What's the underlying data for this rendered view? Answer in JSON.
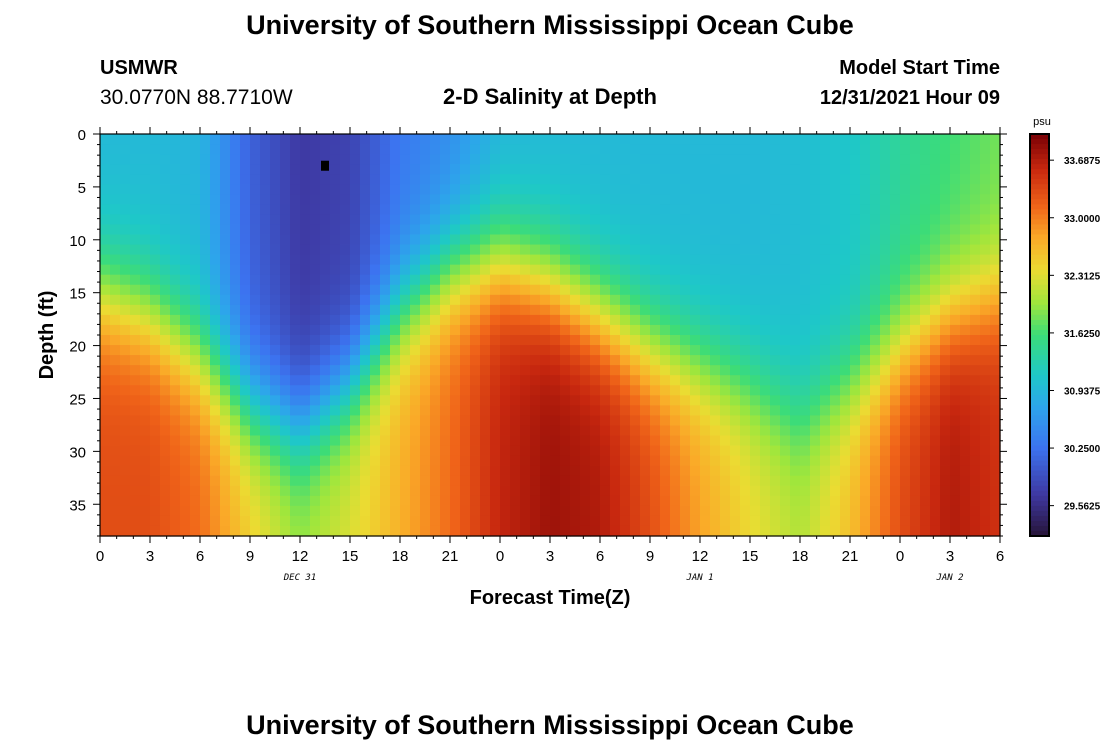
{
  "header": {
    "title": "University of Southern Mississippi Ocean Cube",
    "station_id": "USMWR",
    "station_coords": "30.0770N  88.7710W",
    "subtitle": "2-D Salinity at Depth",
    "model_start_label": "Model Start Time",
    "model_start_value": "12/31/2021 Hour 09"
  },
  "footer": {
    "title": "University of Southern Mississippi Ocean Cube"
  },
  "chart_data": {
    "type": "heatmap",
    "title": "2-D Salinity at Depth",
    "xlabel": "Forecast Time(Z)",
    "ylabel": "Depth (ft)",
    "x_tick_labels": [
      "0",
      "3",
      "6",
      "9",
      "12",
      "15",
      "18",
      "21",
      "0",
      "3",
      "6",
      "9",
      "12",
      "15",
      "18",
      "21",
      "0",
      "3",
      "6"
    ],
    "x_hours_range": [
      0,
      54
    ],
    "date_labels": [
      {
        "label": "DEC 31",
        "hour": 12
      },
      {
        "label": "JAN 1",
        "hour": 36
      },
      {
        "label": "JAN 2",
        "hour": 51
      }
    ],
    "y_ticks": [
      0,
      5,
      10,
      15,
      20,
      25,
      30,
      35
    ],
    "ylim": [
      0,
      38
    ],
    "y_inverted": true,
    "colorbar": {
      "unit": "psu",
      "range": [
        29.2,
        34.0
      ],
      "tick_labels": [
        "33.6875",
        "33.0000",
        "32.3125",
        "31.6250",
        "30.9375",
        "30.2500",
        "29.5625"
      ],
      "tick_values": [
        33.6875,
        33.0,
        32.3125,
        31.625,
        30.9375,
        30.25,
        29.5625
      ]
    },
    "marker": {
      "hour": 13.5,
      "depth_ft": 3
    },
    "profiles": {
      "hours": [
        0,
        3,
        6,
        9,
        12,
        15,
        18,
        21,
        24,
        27,
        30,
        33,
        36,
        39,
        42,
        45,
        48,
        51,
        54
      ],
      "halocline_depth_ft": [
        15,
        17,
        21,
        26,
        28,
        24,
        17,
        13,
        12,
        14,
        17,
        20,
        22,
        24,
        27,
        24,
        20,
        17,
        15
      ],
      "surface_salinity_psu": [
        30.95,
        30.95,
        30.9,
        30.1,
        29.7,
        29.8,
        30.3,
        30.5,
        30.9,
        30.95,
        30.95,
        30.95,
        30.95,
        30.95,
        31.0,
        31.1,
        31.4,
        31.6,
        31.8
      ],
      "bottom_salinity_psu": [
        33.3,
        33.3,
        33.1,
        32.5,
        32.0,
        32.3,
        32.7,
        33.1,
        33.6,
        33.8,
        33.7,
        33.3,
        32.8,
        32.4,
        32.1,
        32.6,
        33.3,
        33.7,
        33.5
      ]
    }
  }
}
